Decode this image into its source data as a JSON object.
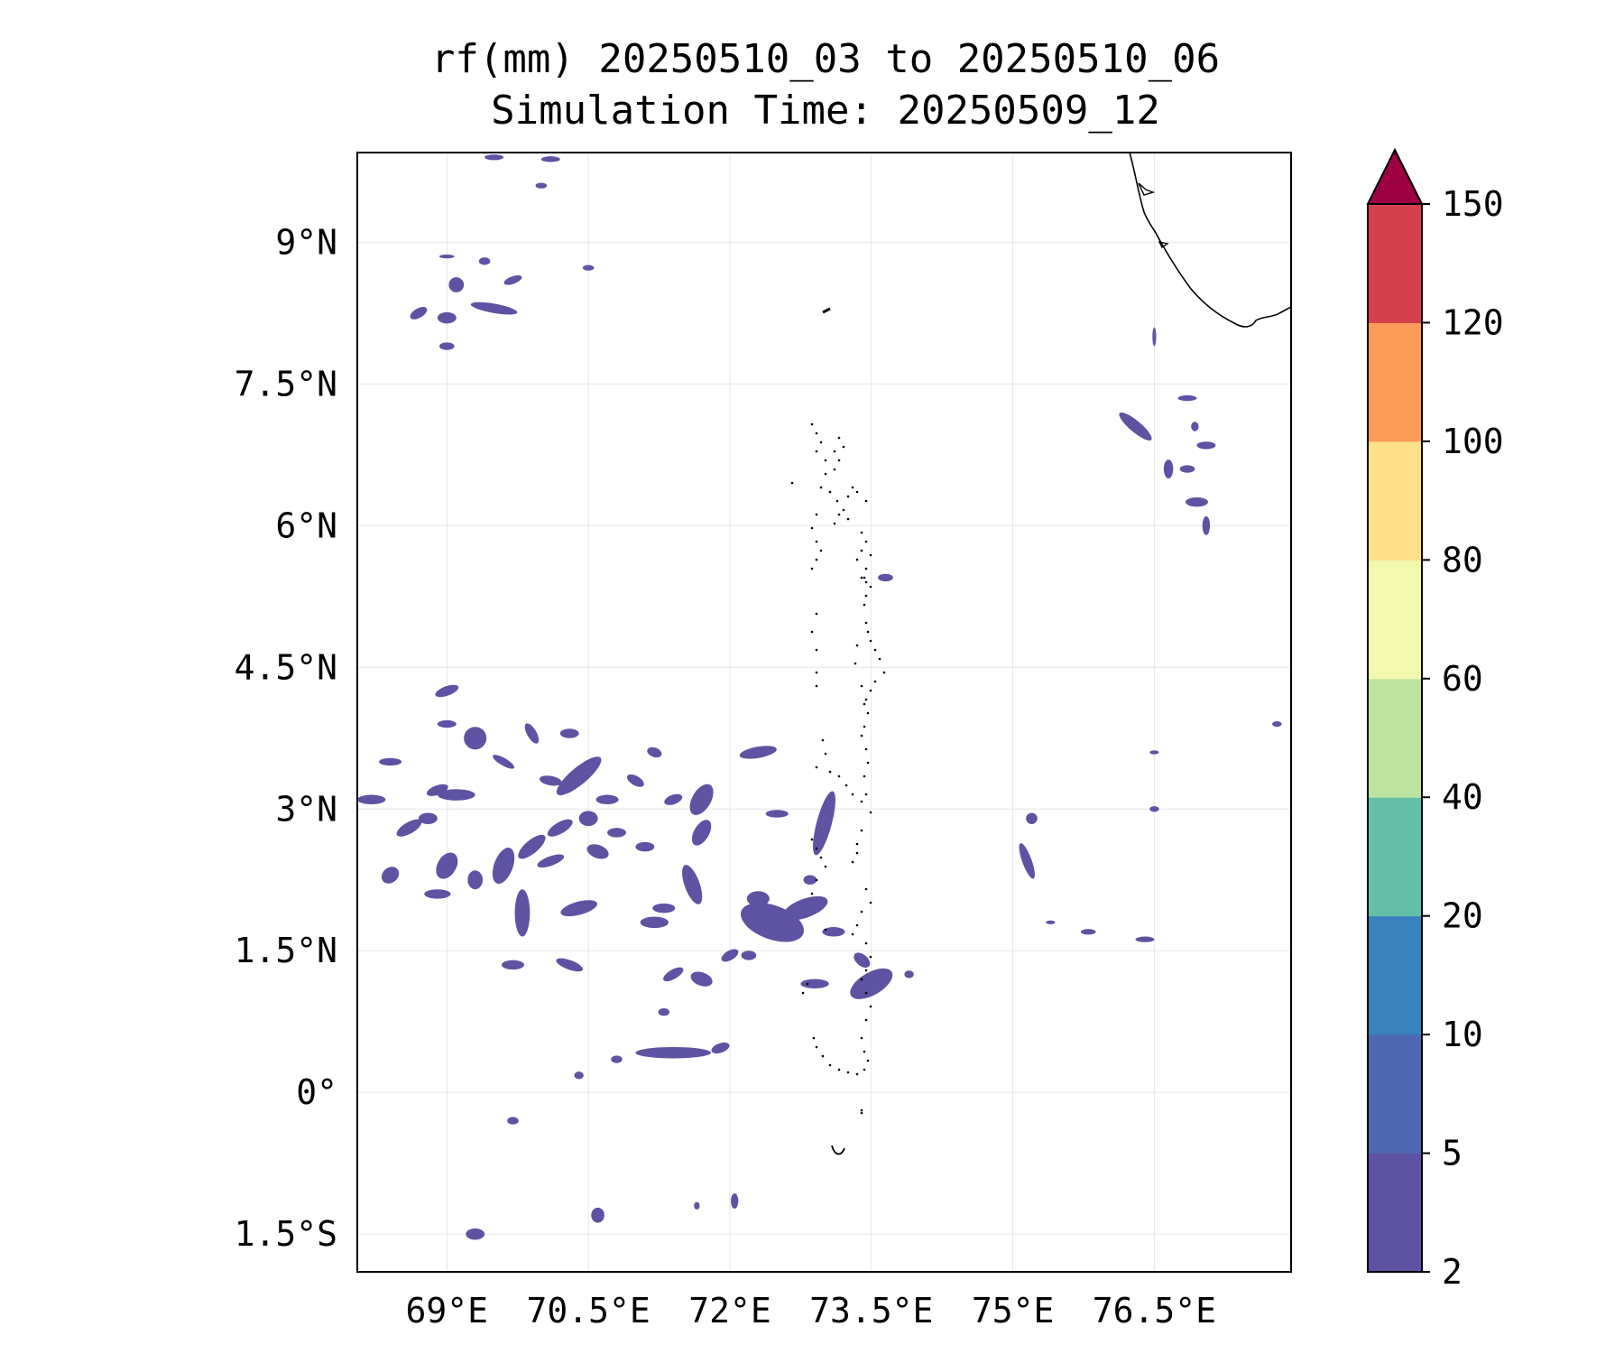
{
  "title": "rf(mm) 20250510_03 to 20250510_06",
  "subtitle": "Simulation Time: 20250509_12",
  "chart_data": {
    "type": "heatmap",
    "variable": "rf(mm)",
    "period": "20250510_03 to 20250510_06",
    "simulation_time": "20250509_12",
    "xlim": [
      68.05,
      77.95
    ],
    "ylim": [
      -1.9,
      9.95
    ],
    "lon_ticks": [
      {
        "value": 69.0,
        "label": "69°E"
      },
      {
        "value": 70.5,
        "label": "70.5°E"
      },
      {
        "value": 72.0,
        "label": "72°E"
      },
      {
        "value": 73.5,
        "label": "73.5°E"
      },
      {
        "value": 75.0,
        "label": "75°E"
      },
      {
        "value": 76.5,
        "label": "76.5°E"
      }
    ],
    "lat_ticks": [
      {
        "value": 9.0,
        "label": "9°N"
      },
      {
        "value": 7.5,
        "label": "7.5°N"
      },
      {
        "value": 6.0,
        "label": "6°N"
      },
      {
        "value": 4.5,
        "label": "4.5°N"
      },
      {
        "value": 3.0,
        "label": "3°N"
      },
      {
        "value": 1.5,
        "label": "1.5°N"
      },
      {
        "value": 0.0,
        "label": "0°"
      },
      {
        "value": -1.5,
        "label": "1.5°S"
      }
    ],
    "grid": true,
    "colorbar": {
      "position": "right",
      "extend": "max",
      "levels": [
        2,
        5,
        10,
        20,
        40,
        60,
        80,
        100,
        120,
        150
      ],
      "labels": [
        "2",
        "5",
        "10",
        "20",
        "40",
        "60",
        "80",
        "100",
        "120",
        "150"
      ],
      "colors": [
        "#5e53a3",
        "#4f66b0",
        "#3a82bc",
        "#63bfa8",
        "#bce4a0",
        "#f2f9ae",
        "#fde08b",
        "#fb9d59",
        "#d6404e",
        "#9e0142"
      ]
    },
    "rain_cells": [
      {
        "lon": 68.4,
        "lat": 3.5,
        "rx": 0.12,
        "ry": 0.04,
        "rot": 0,
        "level": 0
      },
      {
        "lon": 68.2,
        "lat": 3.1,
        "rx": 0.15,
        "ry": 0.05,
        "rot": 0,
        "level": 0
      },
      {
        "lon": 68.9,
        "lat": 3.2,
        "rx": 0.12,
        "ry": 0.05,
        "rot": -20,
        "level": 0
      },
      {
        "lon": 69.1,
        "lat": 3.15,
        "rx": 0.2,
        "ry": 0.06,
        "rot": 0,
        "level": 0
      },
      {
        "lon": 69.6,
        "lat": 3.5,
        "rx": 0.13,
        "ry": 0.04,
        "rot": 30,
        "level": 0
      },
      {
        "lon": 68.6,
        "lat": 2.8,
        "rx": 0.15,
        "ry": 0.06,
        "rot": -30,
        "level": 0
      },
      {
        "lon": 68.4,
        "lat": 2.3,
        "rx": 0.1,
        "ry": 0.08,
        "rot": -40,
        "level": 0
      },
      {
        "lon": 68.9,
        "lat": 2.1,
        "rx": 0.14,
        "ry": 0.05,
        "rot": 0,
        "level": 0
      },
      {
        "lon": 69.0,
        "lat": 2.4,
        "rx": 0.1,
        "ry": 0.15,
        "rot": 30,
        "level": 0
      },
      {
        "lon": 69.3,
        "lat": 2.25,
        "rx": 0.08,
        "ry": 0.1,
        "rot": 0,
        "level": 0
      },
      {
        "lon": 69.6,
        "lat": 2.4,
        "rx": 0.1,
        "ry": 0.2,
        "rot": 20,
        "level": 0
      },
      {
        "lon": 69.9,
        "lat": 2.6,
        "rx": 0.18,
        "ry": 0.07,
        "rot": -40,
        "level": 0
      },
      {
        "lon": 70.2,
        "lat": 2.8,
        "rx": 0.15,
        "ry": 0.06,
        "rot": -30,
        "level": 0
      },
      {
        "lon": 70.1,
        "lat": 2.45,
        "rx": 0.15,
        "ry": 0.05,
        "rot": -20,
        "level": 0
      },
      {
        "lon": 69.8,
        "lat": 1.9,
        "rx": 0.08,
        "ry": 0.25,
        "rot": 0,
        "level": 0
      },
      {
        "lon": 70.4,
        "lat": 1.95,
        "rx": 0.2,
        "ry": 0.07,
        "rot": -15,
        "level": 0
      },
      {
        "lon": 70.3,
        "lat": 1.35,
        "rx": 0.15,
        "ry": 0.05,
        "rot": 20,
        "level": 0
      },
      {
        "lon": 69.7,
        "lat": 1.35,
        "rx": 0.12,
        "ry": 0.05,
        "rot": 0,
        "level": 0
      },
      {
        "lon": 70.4,
        "lat": 3.35,
        "rx": 0.3,
        "ry": 0.09,
        "rot": -40,
        "level": 0
      },
      {
        "lon": 70.7,
        "lat": 3.1,
        "rx": 0.12,
        "ry": 0.05,
        "rot": 0,
        "level": 0
      },
      {
        "lon": 70.1,
        "lat": 3.3,
        "rx": 0.12,
        "ry": 0.05,
        "rot": 10,
        "level": 0
      },
      {
        "lon": 70.5,
        "lat": 2.9,
        "rx": 0.1,
        "ry": 0.08,
        "rot": 0,
        "level": 0
      },
      {
        "lon": 70.6,
        "lat": 2.55,
        "rx": 0.12,
        "ry": 0.07,
        "rot": 20,
        "level": 0
      },
      {
        "lon": 70.8,
        "lat": 2.75,
        "rx": 0.1,
        "ry": 0.05,
        "rot": 0,
        "level": 0
      },
      {
        "lon": 71.0,
        "lat": 3.3,
        "rx": 0.1,
        "ry": 0.05,
        "rot": 30,
        "level": 0
      },
      {
        "lon": 71.4,
        "lat": 3.1,
        "rx": 0.1,
        "ry": 0.05,
        "rot": -20,
        "level": 0
      },
      {
        "lon": 71.7,
        "lat": 3.1,
        "rx": 0.1,
        "ry": 0.18,
        "rot": 30,
        "level": 0
      },
      {
        "lon": 71.7,
        "lat": 2.75,
        "rx": 0.08,
        "ry": 0.15,
        "rot": 30,
        "level": 0
      },
      {
        "lon": 71.6,
        "lat": 2.2,
        "rx": 0.08,
        "ry": 0.22,
        "rot": -20,
        "level": 0
      },
      {
        "lon": 71.2,
        "lat": 1.8,
        "rx": 0.15,
        "ry": 0.06,
        "rot": 0,
        "level": 0
      },
      {
        "lon": 71.3,
        "lat": 1.95,
        "rx": 0.12,
        "ry": 0.05,
        "rot": 0,
        "level": 0
      },
      {
        "lon": 71.1,
        "lat": 2.6,
        "rx": 0.1,
        "ry": 0.05,
        "rot": 0,
        "level": 0
      },
      {
        "lon": 71.2,
        "lat": 3.6,
        "rx": 0.08,
        "ry": 0.05,
        "rot": 20,
        "level": 0
      },
      {
        "lon": 71.4,
        "lat": 1.25,
        "rx": 0.12,
        "ry": 0.05,
        "rot": -30,
        "level": 0
      },
      {
        "lon": 71.7,
        "lat": 1.2,
        "rx": 0.12,
        "ry": 0.07,
        "rot": 20,
        "level": 0
      },
      {
        "lon": 72.0,
        "lat": 1.45,
        "rx": 0.1,
        "ry": 0.05,
        "rot": -30,
        "level": 0
      },
      {
        "lon": 71.9,
        "lat": 0.47,
        "rx": 0.1,
        "ry": 0.05,
        "rot": -20,
        "level": 0
      },
      {
        "lon": 71.4,
        "lat": 0.42,
        "rx": 0.4,
        "ry": 0.06,
        "rot": 0,
        "level": 0
      },
      {
        "lon": 70.8,
        "lat": 0.35,
        "rx": 0.06,
        "ry": 0.04,
        "rot": 0,
        "level": 0
      },
      {
        "lon": 70.4,
        "lat": 0.18,
        "rx": 0.05,
        "ry": 0.04,
        "rot": 0,
        "level": 0
      },
      {
        "lon": 72.3,
        "lat": 3.6,
        "rx": 0.2,
        "ry": 0.06,
        "rot": -10,
        "level": 0
      },
      {
        "lon": 72.45,
        "lat": 1.8,
        "rx": 0.35,
        "ry": 0.18,
        "rot": 20,
        "level": 0
      },
      {
        "lon": 72.8,
        "lat": 1.95,
        "rx": 0.25,
        "ry": 0.1,
        "rot": -20,
        "level": 0
      },
      {
        "lon": 72.3,
        "lat": 2.05,
        "rx": 0.12,
        "ry": 0.08,
        "rot": 0,
        "level": 0
      },
      {
        "lon": 73.1,
        "lat": 1.7,
        "rx": 0.12,
        "ry": 0.05,
        "rot": 0,
        "level": 0
      },
      {
        "lon": 72.85,
        "lat": 2.25,
        "rx": 0.07,
        "ry": 0.05,
        "rot": 0,
        "level": 0
      },
      {
        "lon": 73.0,
        "lat": 2.85,
        "rx": 0.08,
        "ry": 0.35,
        "rot": 15,
        "level": 0
      },
      {
        "lon": 72.5,
        "lat": 2.95,
        "rx": 0.12,
        "ry": 0.04,
        "rot": 0,
        "level": 0
      },
      {
        "lon": 73.5,
        "lat": 1.15,
        "rx": 0.25,
        "ry": 0.12,
        "rot": -30,
        "level": 0
      },
      {
        "lon": 73.4,
        "lat": 1.4,
        "rx": 0.1,
        "ry": 0.06,
        "rot": 40,
        "level": 0
      },
      {
        "lon": 72.9,
        "lat": 1.15,
        "rx": 0.15,
        "ry": 0.05,
        "rot": 0,
        "level": 0
      },
      {
        "lon": 73.9,
        "lat": 1.25,
        "rx": 0.05,
        "ry": 0.04,
        "rot": 0,
        "level": 0
      },
      {
        "lon": 68.8,
        "lat": 2.9,
        "rx": 0.1,
        "ry": 0.06,
        "rot": 0,
        "level": 0
      },
      {
        "lon": 69.0,
        "lat": 4.25,
        "rx": 0.13,
        "ry": 0.05,
        "rot": -20,
        "level": 0
      },
      {
        "lon": 69.0,
        "lat": 3.9,
        "rx": 0.1,
        "ry": 0.04,
        "rot": 0,
        "level": 0
      },
      {
        "lon": 69.3,
        "lat": 3.75,
        "rx": 0.12,
        "ry": 0.12,
        "rot": 30,
        "level": 0
      },
      {
        "lon": 69.9,
        "lat": 3.8,
        "rx": 0.12,
        "ry": 0.05,
        "rot": 60,
        "level": 0
      },
      {
        "lon": 70.3,
        "lat": 3.8,
        "rx": 0.1,
        "ry": 0.05,
        "rot": 0,
        "level": 0
      },
      {
        "lon": 69.1,
        "lat": 8.55,
        "rx": 0.08,
        "ry": 0.08,
        "rot": 0,
        "level": 0
      },
      {
        "lon": 69.0,
        "lat": 8.2,
        "rx": 0.1,
        "ry": 0.06,
        "rot": 0,
        "level": 0
      },
      {
        "lon": 68.7,
        "lat": 8.25,
        "rx": 0.1,
        "ry": 0.05,
        "rot": -30,
        "level": 0
      },
      {
        "lon": 69.5,
        "lat": 8.3,
        "rx": 0.25,
        "ry": 0.05,
        "rot": 10,
        "level": 0
      },
      {
        "lon": 69.0,
        "lat": 7.9,
        "rx": 0.08,
        "ry": 0.04,
        "rot": 0,
        "level": 0
      },
      {
        "lon": 69.7,
        "lat": 8.6,
        "rx": 0.1,
        "ry": 0.04,
        "rot": -20,
        "level": 0
      },
      {
        "lon": 69.4,
        "lat": 8.8,
        "rx": 0.06,
        "ry": 0.04,
        "rot": 0,
        "level": 0
      },
      {
        "lon": 69.0,
        "lat": 8.85,
        "rx": 0.08,
        "ry": 0.02,
        "rot": 0,
        "level": 0
      },
      {
        "lon": 69.5,
        "lat": 9.9,
        "rx": 0.1,
        "ry": 0.03,
        "rot": 0,
        "level": 0
      },
      {
        "lon": 70.1,
        "lat": 9.88,
        "rx": 0.1,
        "ry": 0.03,
        "rot": 0,
        "level": 0
      },
      {
        "lon": 70.0,
        "lat": 9.6,
        "rx": 0.06,
        "ry": 0.03,
        "rot": 0,
        "level": 0
      },
      {
        "lon": 70.5,
        "lat": 8.73,
        "rx": 0.06,
        "ry": 0.03,
        "rot": 0,
        "level": 0
      },
      {
        "lon": 76.3,
        "lat": 7.05,
        "rx": 0.22,
        "ry": 0.06,
        "rot": 40,
        "level": 0
      },
      {
        "lon": 76.65,
        "lat": 6.6,
        "rx": 0.05,
        "ry": 0.1,
        "rot": 0,
        "level": 0
      },
      {
        "lon": 76.85,
        "lat": 6.6,
        "rx": 0.08,
        "ry": 0.04,
        "rot": 0,
        "level": 0
      },
      {
        "lon": 77.05,
        "lat": 6.85,
        "rx": 0.1,
        "ry": 0.04,
        "rot": 0,
        "level": 0
      },
      {
        "lon": 76.95,
        "lat": 6.25,
        "rx": 0.12,
        "ry": 0.05,
        "rot": 0,
        "level": 0
      },
      {
        "lon": 77.05,
        "lat": 6.0,
        "rx": 0.04,
        "ry": 0.1,
        "rot": 0,
        "level": 0
      },
      {
        "lon": 76.85,
        "lat": 7.35,
        "rx": 0.1,
        "ry": 0.03,
        "rot": 0,
        "level": 0
      },
      {
        "lon": 76.93,
        "lat": 7.05,
        "rx": 0.04,
        "ry": 0.05,
        "rot": 0,
        "level": 0
      },
      {
        "lon": 76.5,
        "lat": 8.0,
        "rx": 0.02,
        "ry": 0.1,
        "rot": 0,
        "level": 0
      },
      {
        "lon": 75.2,
        "lat": 2.9,
        "rx": 0.06,
        "ry": 0.06,
        "rot": 0,
        "level": 0
      },
      {
        "lon": 75.15,
        "lat": 2.45,
        "rx": 0.05,
        "ry": 0.2,
        "rot": -20,
        "level": 0
      },
      {
        "lon": 76.4,
        "lat": 1.62,
        "rx": 0.1,
        "ry": 0.03,
        "rot": 0,
        "level": 0
      },
      {
        "lon": 75.8,
        "lat": 1.7,
        "rx": 0.08,
        "ry": 0.03,
        "rot": 0,
        "level": 0
      },
      {
        "lon": 75.4,
        "lat": 1.8,
        "rx": 0.05,
        "ry": 0.02,
        "rot": 0,
        "level": 0
      },
      {
        "lon": 76.5,
        "lat": 3.0,
        "rx": 0.05,
        "ry": 0.03,
        "rot": 0,
        "level": 0
      },
      {
        "lon": 76.5,
        "lat": 3.6,
        "rx": 0.05,
        "ry": 0.02,
        "rot": 0,
        "level": 0
      },
      {
        "lon": 73.65,
        "lat": 5.45,
        "rx": 0.08,
        "ry": 0.04,
        "rot": 0,
        "level": 0
      },
      {
        "lon": 69.3,
        "lat": -1.5,
        "rx": 0.1,
        "ry": 0.06,
        "rot": 0,
        "level": 0
      },
      {
        "lon": 70.6,
        "lat": -1.3,
        "rx": 0.07,
        "ry": 0.08,
        "rot": 0,
        "level": 0
      },
      {
        "lon": 69.7,
        "lat": -0.3,
        "rx": 0.06,
        "ry": 0.04,
        "rot": 0,
        "level": 0
      },
      {
        "lon": 72.05,
        "lat": -1.15,
        "rx": 0.04,
        "ry": 0.08,
        "rot": 0,
        "level": 0
      },
      {
        "lon": 71.65,
        "lat": -1.2,
        "rx": 0.03,
        "ry": 0.04,
        "rot": 0,
        "level": 0
      },
      {
        "lon": 77.8,
        "lat": 3.9,
        "rx": 0.05,
        "ry": 0.03,
        "rot": 0,
        "level": 0
      },
      {
        "lon": 72.2,
        "lat": 1.45,
        "rx": 0.08,
        "ry": 0.05,
        "rot": 0,
        "level": 0
      },
      {
        "lon": 71.3,
        "lat": 0.85,
        "rx": 0.06,
        "ry": 0.04,
        "rot": 0,
        "level": 0
      }
    ],
    "land": {
      "name": "Sri Lanka / India coast",
      "fill": "#ffffff",
      "outline": "#000000"
    }
  }
}
